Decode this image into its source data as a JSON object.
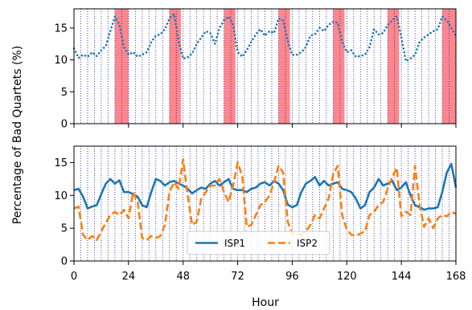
{
  "chart_data": {
    "type": "line",
    "xlabel": "Hour",
    "ylabel": "Percentage of Bad Quartets (%)",
    "xlim": [
      0,
      168
    ],
    "x_ticks": [
      0,
      24,
      48,
      72,
      96,
      120,
      144,
      168
    ],
    "vertical_dotted_lines_every_hours": 3,
    "panels": [
      {
        "ylim": [
          0,
          18
        ],
        "y_ticks": [
          0,
          5,
          10,
          15
        ],
        "shaded_intervals": [
          [
            18,
            24
          ],
          [
            42,
            47
          ],
          [
            66,
            71
          ],
          [
            90,
            95
          ],
          [
            114,
            119
          ],
          [
            138,
            143
          ],
          [
            162,
            168
          ]
        ],
        "series": [
          {
            "name": "",
            "color": "#1f77b4",
            "style": "dotted",
            "x": [
              0,
              2,
              4,
              6,
              8,
              10,
              12,
              14,
              16,
              18,
              20,
              22,
              24,
              26,
              28,
              30,
              32,
              34,
              36,
              38,
              40,
              42,
              44,
              46,
              48,
              50,
              52,
              54,
              56,
              58,
              60,
              62,
              64,
              66,
              68,
              70,
              72,
              74,
              76,
              78,
              80,
              82,
              84,
              86,
              88,
              90,
              92,
              94,
              96,
              98,
              100,
              102,
              104,
              106,
              108,
              110,
              112,
              114,
              116,
              118,
              120,
              122,
              124,
              126,
              128,
              130,
              132,
              134,
              136,
              138,
              140,
              142,
              144,
              146,
              148,
              150,
              152,
              154,
              156,
              158,
              160,
              162,
              164,
              166,
              168
            ],
            "y": [
              11.8,
              10.3,
              10.8,
              10.5,
              11.2,
              10.6,
              11.5,
              12.2,
              14.5,
              16.8,
              15.5,
              12.0,
              10.8,
              11.2,
              10.5,
              10.8,
              11.2,
              12.8,
              13.8,
              14.0,
              14.8,
              16.5,
              17.2,
              13.0,
              10.2,
              10.4,
              11.0,
              12.5,
              13.5,
              14.5,
              14.2,
              12.5,
              15.0,
              16.2,
              16.8,
              15.5,
              11.2,
              10.5,
              11.5,
              12.8,
              14.0,
              14.8,
              13.8,
              14.5,
              14.2,
              16.5,
              16.2,
              13.0,
              10.8,
              10.8,
              11.2,
              12.0,
              13.8,
              14.0,
              15.0,
              14.5,
              15.5,
              16.0,
              15.8,
              12.8,
              11.2,
              11.5,
              10.5,
              10.6,
              10.8,
              12.0,
              14.8,
              14.0,
              14.2,
              15.5,
              16.2,
              16.8,
              13.5,
              9.8,
              10.2,
              10.8,
              12.8,
              13.5,
              14.0,
              14.5,
              14.8,
              16.8,
              16.2,
              15.0,
              13.8
            ]
          }
        ]
      },
      {
        "ylim": [
          0,
          17.5
        ],
        "y_ticks": [
          0,
          5,
          10,
          15
        ],
        "legend": {
          "placement": "lower center",
          "entries": [
            "ISP1",
            "ISP2"
          ]
        },
        "series": [
          {
            "name": "ISP1",
            "color": "#1f77b4",
            "style": "solid",
            "x": [
              0,
              2,
              4,
              6,
              8,
              10,
              12,
              14,
              16,
              18,
              20,
              22,
              24,
              26,
              28,
              30,
              32,
              34,
              36,
              38,
              40,
              42,
              44,
              46,
              48,
              50,
              52,
              54,
              56,
              58,
              60,
              62,
              64,
              66,
              68,
              70,
              72,
              74,
              76,
              78,
              80,
              82,
              84,
              86,
              88,
              90,
              92,
              94,
              96,
              98,
              100,
              102,
              104,
              106,
              108,
              110,
              112,
              114,
              116,
              118,
              120,
              122,
              124,
              126,
              128,
              130,
              132,
              134,
              136,
              138,
              140,
              142,
              144,
              146,
              148,
              150,
              152,
              154,
              156,
              158,
              160,
              162,
              164,
              166,
              168
            ],
            "y": [
              10.8,
              11.0,
              9.8,
              8.0,
              8.3,
              8.5,
              10.2,
              11.8,
              12.5,
              11.8,
              12.3,
              10.5,
              10.5,
              10.2,
              9.8,
              8.5,
              8.2,
              10.5,
              12.5,
              12.2,
              11.5,
              12.0,
              12.2,
              11.8,
              11.5,
              11.0,
              10.3,
              10.8,
              11.2,
              11.0,
              11.8,
              12.2,
              11.5,
              12.0,
              12.5,
              11.0,
              10.8,
              10.8,
              10.5,
              11.0,
              11.2,
              11.8,
              12.0,
              11.5,
              12.2,
              11.8,
              10.8,
              8.6,
              8.2,
              8.5,
              10.5,
              11.8,
              12.2,
              12.8,
              11.5,
              12.2,
              11.5,
              11.8,
              12.0,
              11.0,
              10.8,
              10.5,
              9.5,
              8.0,
              8.5,
              10.5,
              11.2,
              12.5,
              11.5,
              11.8,
              12.2,
              10.8,
              11.2,
              12.0,
              10.0,
              8.5,
              8.2,
              7.8,
              8.0,
              8.0,
              8.2,
              10.5,
              13.5,
              14.8,
              11.2
            ]
          },
          {
            "name": "ISP2",
            "color": "#ff7f0e",
            "style": "dashed",
            "x": [
              0,
              2,
              4,
              6,
              8,
              10,
              12,
              14,
              16,
              18,
              20,
              22,
              24,
              26,
              28,
              30,
              32,
              34,
              36,
              38,
              40,
              42,
              44,
              46,
              48,
              50,
              52,
              54,
              56,
              58,
              60,
              62,
              64,
              66,
              68,
              70,
              72,
              74,
              76,
              78,
              80,
              82,
              84,
              86,
              88,
              90,
              92,
              94,
              96,
              98,
              100,
              102,
              104,
              106,
              108,
              110,
              112,
              114,
              116,
              118,
              120,
              122,
              124,
              126,
              128,
              130,
              132,
              134,
              136,
              138,
              140,
              142,
              144,
              146,
              148,
              150,
              152,
              154,
              156,
              158,
              160,
              162,
              164,
              166,
              168
            ],
            "y": [
              8.0,
              8.3,
              4.0,
              3.2,
              3.8,
              3.2,
              4.5,
              5.8,
              7.0,
              7.5,
              7.0,
              7.8,
              6.5,
              10.5,
              9.0,
              3.5,
              3.2,
              3.8,
              3.5,
              3.8,
              5.5,
              10.5,
              12.0,
              11.0,
              15.5,
              10.0,
              5.5,
              6.0,
              9.5,
              10.5,
              11.5,
              11.5,
              12.5,
              10.5,
              9.0,
              11.5,
              15.0,
              13.0,
              5.2,
              5.5,
              7.0,
              8.5,
              9.0,
              10.0,
              12.0,
              14.5,
              13.5,
              6.0,
              4.2,
              4.0,
              4.0,
              4.5,
              5.5,
              7.0,
              6.5,
              8.0,
              9.5,
              13.2,
              14.5,
              7.0,
              4.8,
              4.0,
              3.8,
              4.2,
              4.5,
              7.0,
              7.5,
              8.5,
              9.0,
              11.0,
              12.8,
              14.2,
              6.8,
              7.5,
              7.0,
              14.5,
              8.5,
              5.2,
              6.5,
              5.0,
              6.5,
              7.0,
              6.8,
              7.5,
              7.2
            ]
          }
        ]
      }
    ]
  }
}
